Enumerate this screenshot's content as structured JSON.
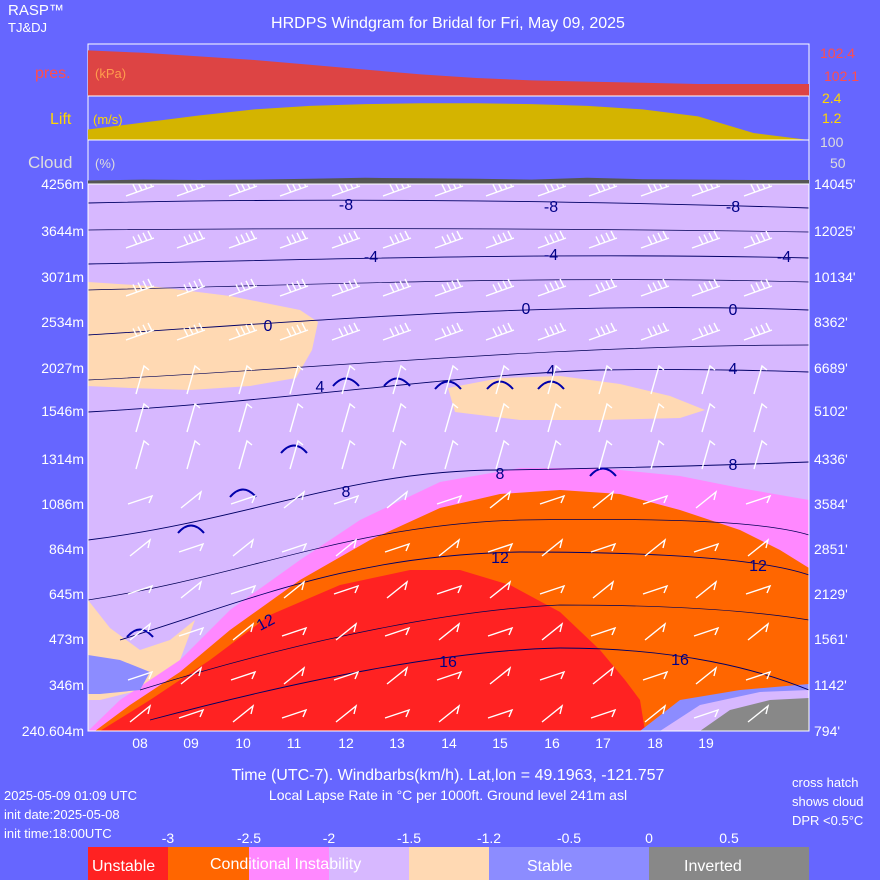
{
  "header": {
    "brand": "RASP™",
    "authors": "TJ&DJ",
    "title": "HRDPS Windgram for Bridal for Fri, May 09, 2025"
  },
  "panels": {
    "pressure": {
      "label": "pres.",
      "unit": "(kPa)",
      "scale": [
        "102.4",
        "102.1"
      ],
      "color": "#e04040"
    },
    "lift": {
      "label": "Lift",
      "unit": "(m/s)",
      "scale": [
        "2.4",
        "1.2"
      ],
      "color": "#d9b800"
    },
    "cloud": {
      "label": "Cloud",
      "unit": "(%)",
      "scale": [
        "100",
        "50"
      ],
      "color": "#555555"
    }
  },
  "chart_data": {
    "type": "heatmap",
    "x_label": "Time (UTC-7). Windbarbs(km/h). Lat,lon = 49.1963, -121.757",
    "x_ticks": [
      "08",
      "09",
      "10",
      "11",
      "12",
      "13",
      "14",
      "15",
      "16",
      "17",
      "18",
      "19"
    ],
    "y_left_ticks": [
      "4256m",
      "3644m",
      "3071m",
      "2534m",
      "2027m",
      "1546m",
      "1314m",
      "1086m",
      "864m",
      "645m",
      "473m",
      "346m",
      "240.604m"
    ],
    "y_right_ticks": [
      "14045'",
      "12025'",
      "10134'",
      "8362'",
      "6689'",
      "5102'",
      "4336'",
      "3584'",
      "2851'",
      "2129'",
      "1561'",
      "1142'",
      "794'"
    ],
    "isotherm_labels": [
      "-8",
      "-8",
      "-8",
      "-4",
      "-4",
      "-4",
      "0",
      "0",
      "0",
      "4",
      "4",
      "4",
      "8",
      "8",
      "8",
      "12",
      "12",
      "12",
      "16",
      "16"
    ],
    "pressure_kpa": [
      102.38,
      102.36,
      102.33,
      102.3,
      102.26,
      102.22,
      102.18,
      102.15,
      102.13,
      102.12,
      102.11,
      102.1,
      102.1,
      102.1
    ],
    "lift_ms": [
      0.6,
      1.0,
      1.4,
      1.75,
      1.95,
      2.05,
      2.1,
      2.1,
      2.05,
      1.95,
      1.75,
      1.35,
      0.4,
      0.0
    ],
    "cloud_pct": [
      8,
      10,
      9,
      10,
      12,
      14,
      13,
      12,
      10,
      14,
      11,
      10,
      9,
      9
    ],
    "lapse_rate_scale": [
      "-3",
      "-2.5",
      "-2",
      "-1.5",
      "-1.2",
      "-0.5",
      "0",
      "0.5"
    ],
    "lapse_rate_categories": [
      {
        "name": "Unstable",
        "color": "#ff2222"
      },
      {
        "name": "Conditional Instability",
        "color": "#ff6600"
      },
      {
        "name": "",
        "color": "#ff88ff"
      },
      {
        "name": "",
        "color": "#d7b8ff"
      },
      {
        "name": "",
        "color": "#ffd9b3"
      },
      {
        "name": "Stable",
        "color": "#8c8cff"
      },
      {
        "name": "Inverted",
        "color": "#888888"
      }
    ]
  },
  "footer": {
    "subtitle": "Local Lapse Rate in °C per 1000ft.   Ground level 241m asl",
    "valid": "2025-05-09 01:09 UTC",
    "init_date": "init date:2025-05-08",
    "init_time": "init time:18:00UTC",
    "note_line1": "cross hatch",
    "note_line2": "shows cloud",
    "note_line3": "DPR <0.5°C"
  }
}
